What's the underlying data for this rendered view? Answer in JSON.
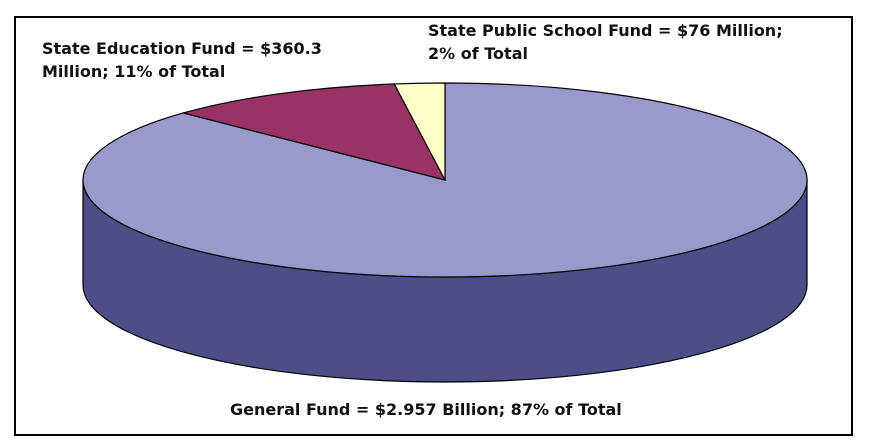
{
  "chart_data": {
    "type": "pie",
    "style": "3d-tilted",
    "title": "",
    "slices": [
      {
        "name": "General Fund",
        "value": 2957,
        "percent": 87,
        "color": "#9999cc",
        "side_color": "#4d4d87",
        "label": "General Fund = $2.957 Billion; 87% of Total"
      },
      {
        "name": "State Education Fund",
        "value": 360.3,
        "percent": 11,
        "color": "#993366",
        "side_color": "#5e1f40",
        "label_lines": [
          "State Education Fund = $360.3",
          "Million; 11% of Total"
        ]
      },
      {
        "name": "State Public School Fund",
        "value": 76,
        "percent": 2,
        "color": "#ffffcc",
        "side_color": "#c8c89a",
        "label_lines": [
          "State Public School Fund = $76 Million;",
          "2% of Total"
        ]
      }
    ]
  }
}
